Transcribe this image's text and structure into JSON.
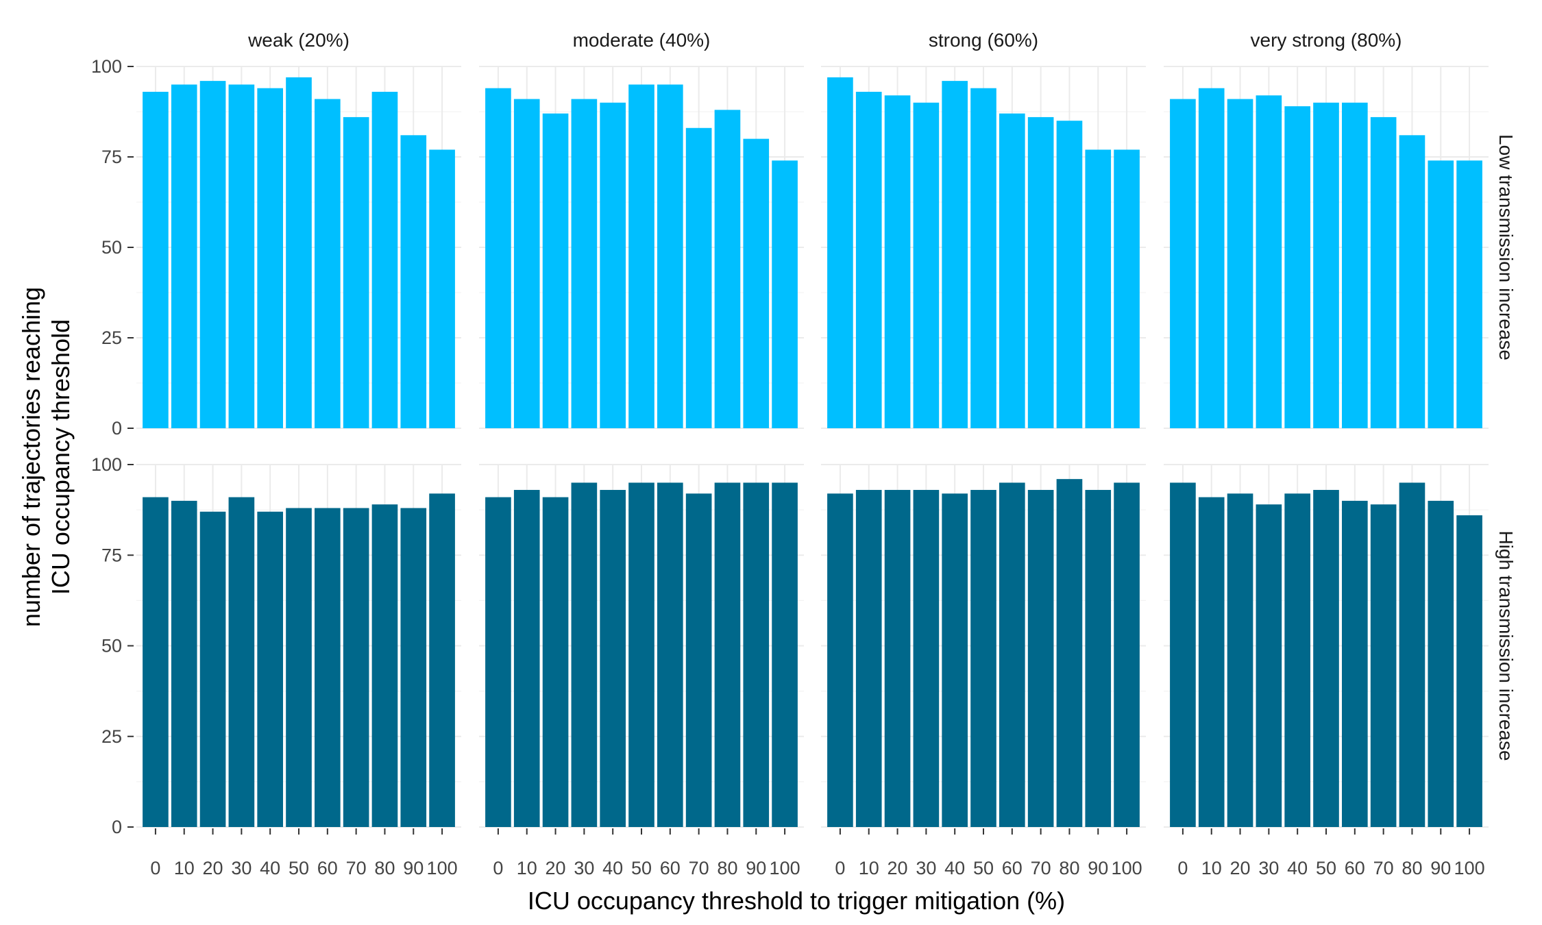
{
  "chart_data": {
    "type": "bar",
    "xlabel": "ICU occupancy threshold to trigger mitigation (%)",
    "ylabel_lines": [
      "number of trajectories reaching",
      "ICU occupancy threshold"
    ],
    "categories": [
      "0",
      "10",
      "20",
      "30",
      "40",
      "50",
      "60",
      "70",
      "80",
      "90",
      "100"
    ],
    "columns": [
      "weak (20%)",
      "moderate (40%)",
      "strong (60%)",
      "very strong (80%)"
    ],
    "rows": [
      "Low transmission increase",
      "High transmission increase"
    ],
    "yticks": [
      0,
      25,
      50,
      75,
      100
    ],
    "ylim": [
      0,
      100
    ],
    "grid": true,
    "colors": {
      "low": "#00BFFF",
      "high": "#00688B"
    },
    "panels": [
      {
        "row": 0,
        "col": 0,
        "values": [
          93,
          95,
          96,
          95,
          94,
          97,
          91,
          86,
          93,
          81,
          77
        ]
      },
      {
        "row": 0,
        "col": 1,
        "values": [
          94,
          91,
          87,
          91,
          90,
          95,
          95,
          83,
          88,
          80,
          74
        ]
      },
      {
        "row": 0,
        "col": 2,
        "values": [
          97,
          93,
          92,
          90,
          96,
          94,
          87,
          86,
          85,
          77,
          77
        ]
      },
      {
        "row": 0,
        "col": 3,
        "values": [
          91,
          94,
          91,
          92,
          89,
          90,
          90,
          86,
          81,
          74,
          74
        ]
      },
      {
        "row": 1,
        "col": 0,
        "values": [
          91,
          90,
          87,
          91,
          87,
          88,
          88,
          88,
          89,
          88,
          92
        ]
      },
      {
        "row": 1,
        "col": 1,
        "values": [
          91,
          93,
          91,
          95,
          93,
          95,
          95,
          92,
          95,
          95,
          95
        ]
      },
      {
        "row": 1,
        "col": 2,
        "values": [
          92,
          93,
          93,
          93,
          92,
          93,
          95,
          93,
          96,
          93,
          95
        ]
      },
      {
        "row": 1,
        "col": 3,
        "values": [
          95,
          91,
          92,
          89,
          92,
          93,
          90,
          89,
          95,
          90,
          86
        ]
      }
    ]
  }
}
